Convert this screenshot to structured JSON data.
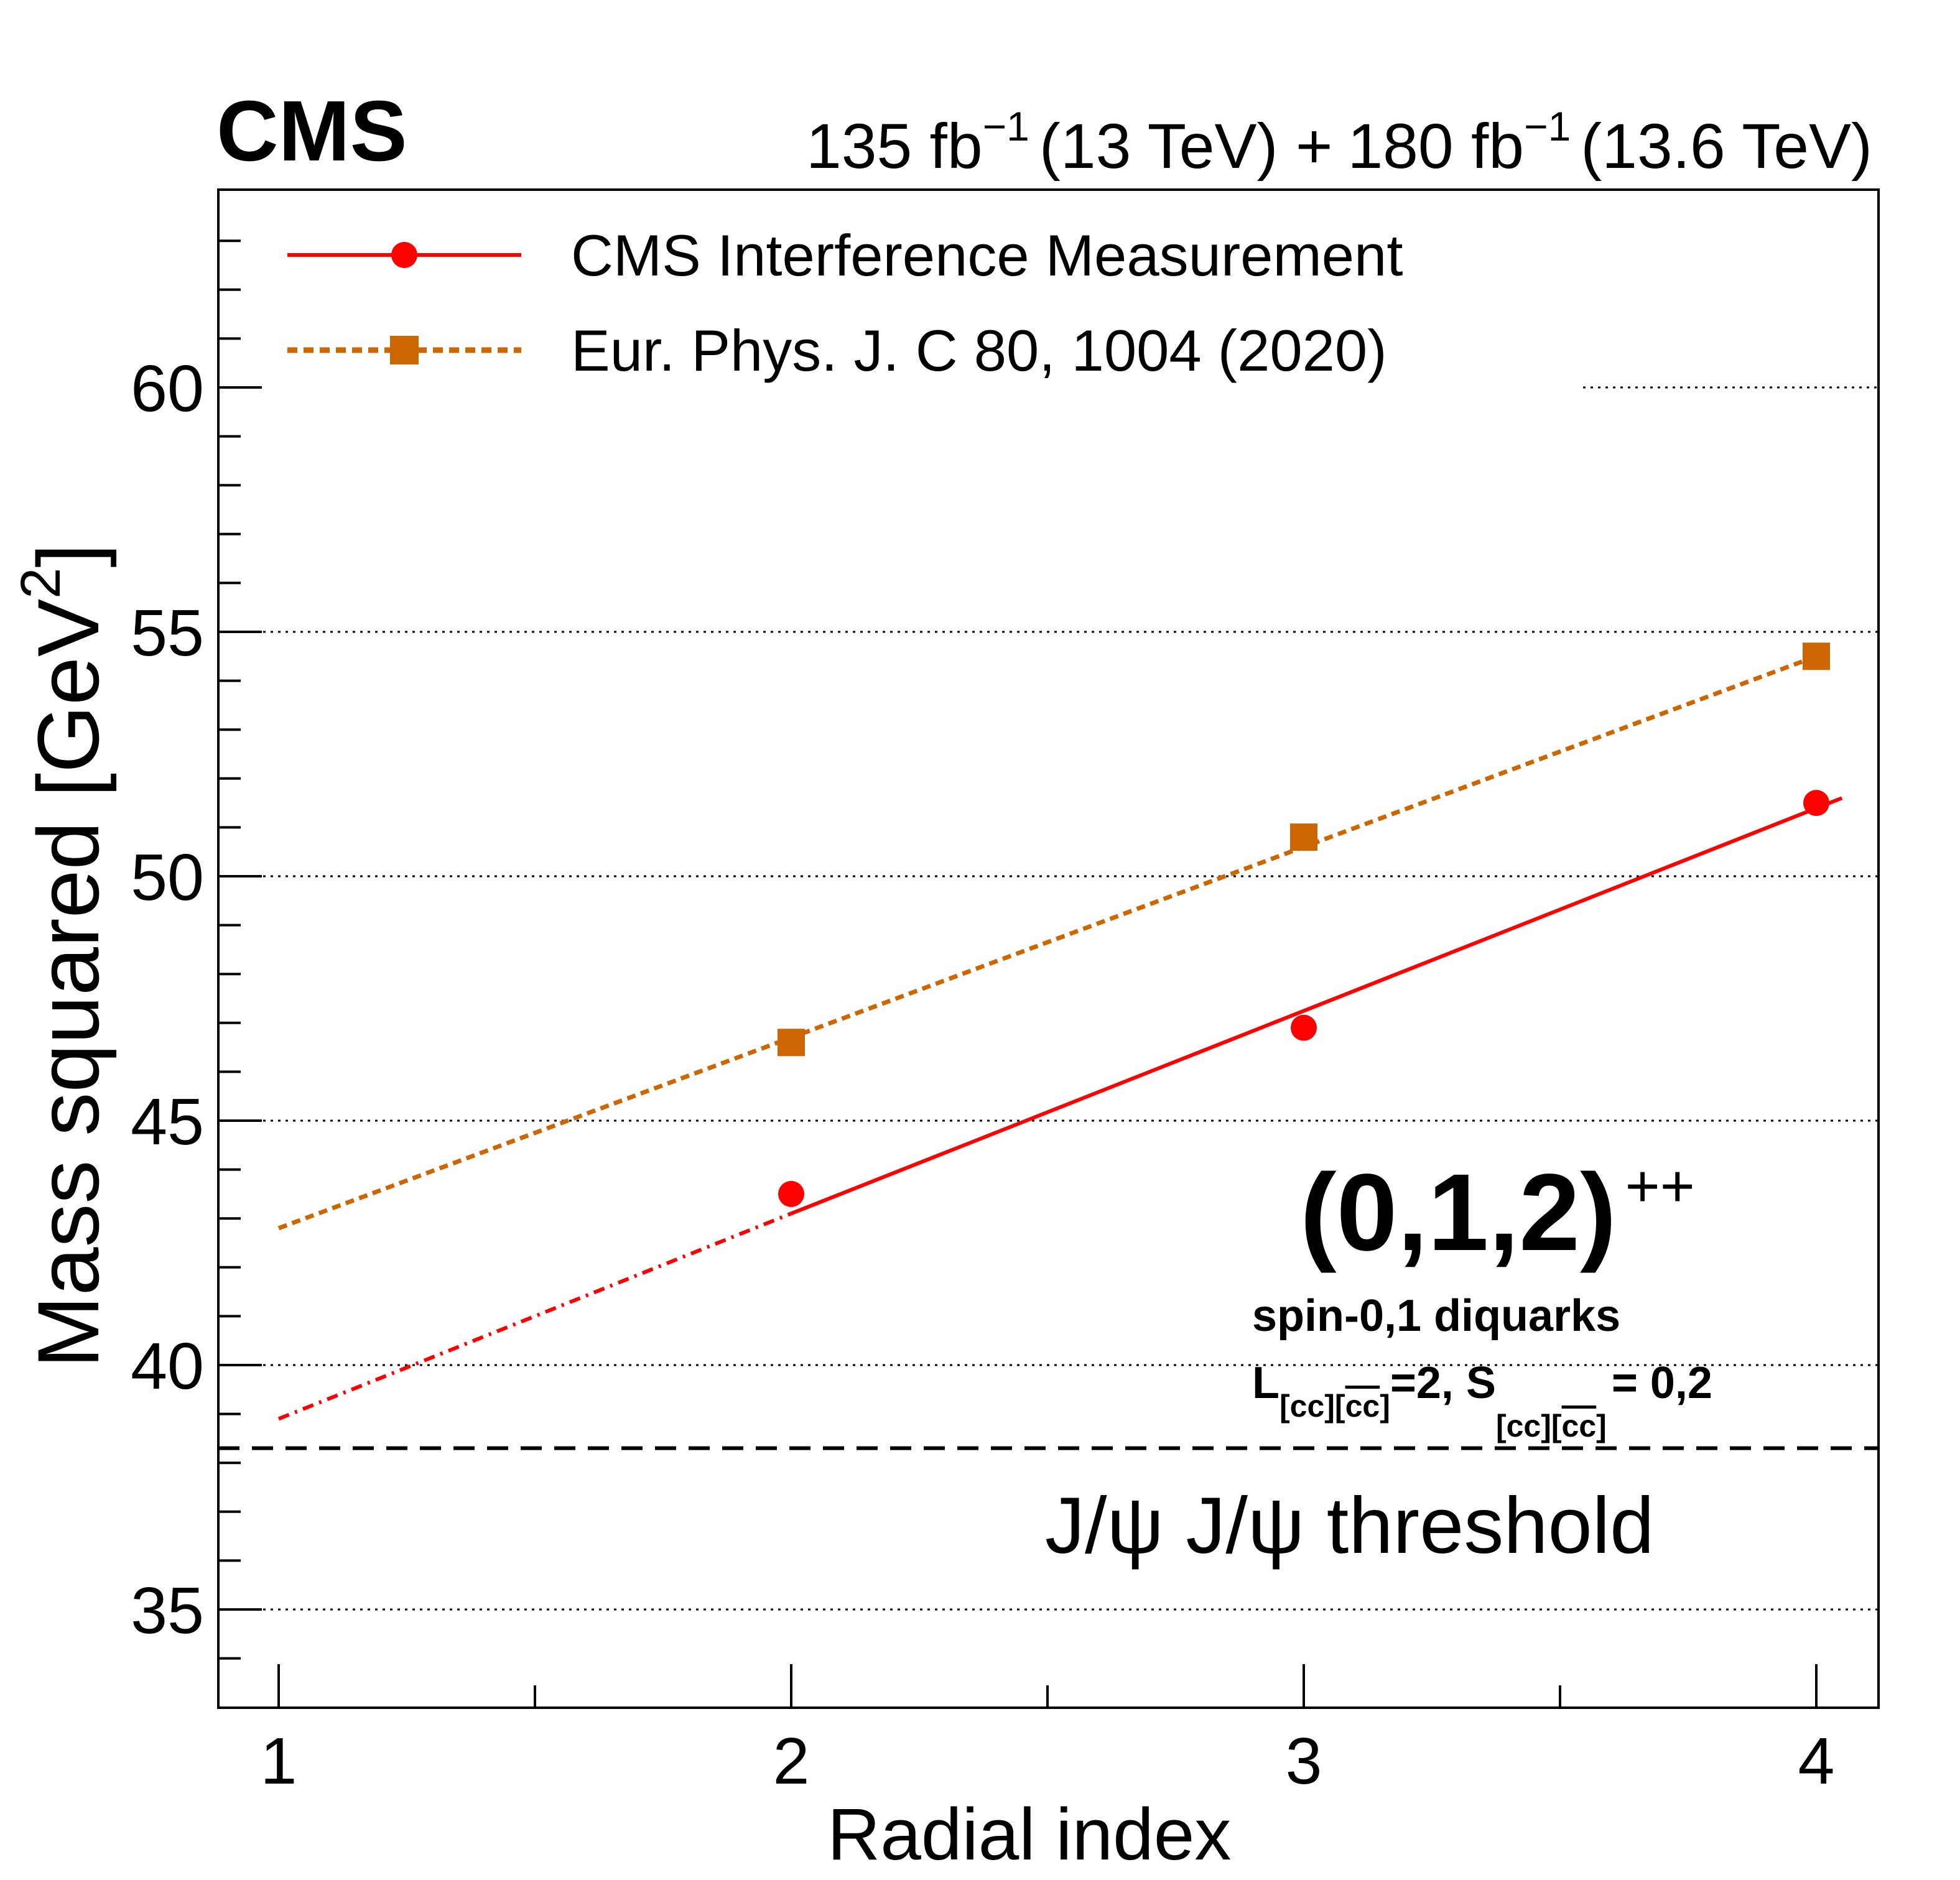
{
  "header": {
    "experiment": "CMS",
    "lumi": {
      "run2_value": "135 fb",
      "run2_exp": "−1",
      "run2_energy": "(13 TeV) +",
      "run3_value": "180 fb",
      "run3_exp": "−1",
      "run3_energy": "(13.6 TeV)"
    }
  },
  "chart_data": {
    "type": "line",
    "xlabel": "Radial index",
    "ylabel": "Mass squared [GeV",
    "ylabel_sup": "2",
    "ylabel_close": "]",
    "xlim": [
      0.88,
      4.12
    ],
    "ylim": [
      33,
      64
    ],
    "x_ticks": [
      1,
      2,
      3,
      4
    ],
    "x_tick_labels": [
      "1",
      "2",
      "3",
      "4"
    ],
    "y_ticks": [
      35,
      40,
      45,
      50,
      55,
      60
    ],
    "y_tick_labels": [
      "35",
      "40",
      "45",
      "50",
      "55",
      "60"
    ],
    "grid": "horizontal dotted",
    "legend_position": "top-left",
    "series": [
      {
        "name": "CMS Interference Measurement",
        "color": "#ff0000",
        "marker": "circle",
        "line": "solid",
        "x": [
          2,
          3,
          4
        ],
        "y": [
          43.5,
          46.9,
          51.5
        ],
        "fit": {
          "from": 2.0,
          "to": 4.05,
          "y_from": 43.1,
          "y_to": 51.6
        },
        "extrapolation": {
          "from": 1.0,
          "to": 2.0,
          "y_from": 38.9,
          "y_to": 43.1,
          "style": "dash-dot"
        }
      },
      {
        "name": "Eur. Phys. J. C 80, 1004 (2020)",
        "color": "#cc6600",
        "marker": "square",
        "line": "dashed",
        "x": [
          2,
          3,
          4
        ],
        "y": [
          46.6,
          50.8,
          54.5
        ],
        "fit": {
          "from": 1.0,
          "to": 4.0,
          "y_from": 42.8,
          "y_to": 54.5
        }
      }
    ],
    "threshold": {
      "value": 38.3,
      "label": "J/ψ J/ψ threshold",
      "style": "dashed",
      "color": "#000000"
    },
    "annotations": {
      "state": "(0,1,2)",
      "state_sup": "++",
      "line1": "spin-0,1 diquarks",
      "line2_L": "L",
      "line2_sub1": "[cc][",
      "line2_sub1_bar": "cc",
      "line2_sub1_end": "]",
      "line2_mid": "=2, S",
      "line2_sub2": "[cc][",
      "line2_sub2_bar": "cc",
      "line2_sub2_end": "]",
      "line2_end": "= 0,2"
    }
  }
}
